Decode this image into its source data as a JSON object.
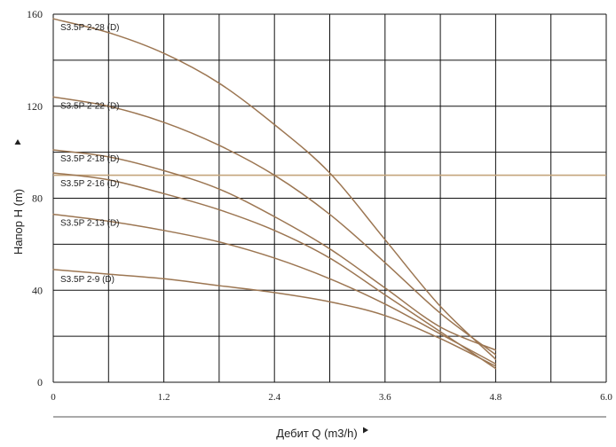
{
  "chart_data": {
    "type": "line",
    "xlabel": "Дебит Q (m3/h)",
    "ylabel": "Напор H (m)",
    "xlim": [
      0,
      6.0
    ],
    "ylim": [
      0,
      160
    ],
    "x_ticks": [
      "0",
      "1.2",
      "2.4",
      "3.6",
      "4.8",
      "6.0"
    ],
    "y_ticks": [
      "0",
      "40",
      "80",
      "120",
      "160"
    ],
    "grid": true,
    "reference_line": {
      "y": 90,
      "color": "#c4a57c"
    },
    "line_color": "#9c7652",
    "series": [
      {
        "name": "S3.5P 2-28 (D)",
        "x": [
          0,
          0.6,
          1.2,
          1.8,
          2.4,
          3.0,
          3.6,
          4.2,
          4.8
        ],
        "y": [
          158,
          152,
          143,
          130,
          112,
          91,
          62,
          33,
          10
        ]
      },
      {
        "name": "S3.5P 2-22 (D)",
        "x": [
          0,
          0.6,
          1.2,
          1.8,
          2.4,
          3.0,
          3.6,
          4.2,
          4.8
        ],
        "y": [
          124,
          120,
          113,
          103,
          90,
          73,
          52,
          30,
          12
        ]
      },
      {
        "name": "S3.5P 2-18 (D)",
        "x": [
          0,
          0.6,
          1.2,
          1.8,
          2.4,
          3.0,
          3.6,
          4.2,
          4.8
        ],
        "y": [
          101,
          98,
          92,
          84,
          72,
          58,
          41,
          24,
          14
        ]
      },
      {
        "name": "S3.5P 2-16 (D)",
        "x": [
          0,
          0.6,
          1.2,
          1.8,
          2.4,
          3.0,
          3.6,
          4.2,
          4.8
        ],
        "y": [
          91,
          88,
          82,
          75,
          66,
          54,
          38,
          22,
          6
        ]
      },
      {
        "name": "S3.5P 2-13 (D)",
        "x": [
          0,
          0.6,
          1.2,
          1.8,
          2.4,
          3.0,
          3.6,
          4.2,
          4.8
        ],
        "y": [
          73,
          70,
          66,
          61,
          54,
          45,
          34,
          21,
          8
        ]
      },
      {
        "name": "S3.5P 2-9 (D)",
        "x": [
          0,
          0.6,
          1.2,
          1.8,
          2.4,
          3.0,
          3.6,
          4.2,
          4.8
        ],
        "y": [
          49,
          47,
          45,
          42,
          39,
          35,
          29,
          19,
          7
        ]
      }
    ]
  }
}
